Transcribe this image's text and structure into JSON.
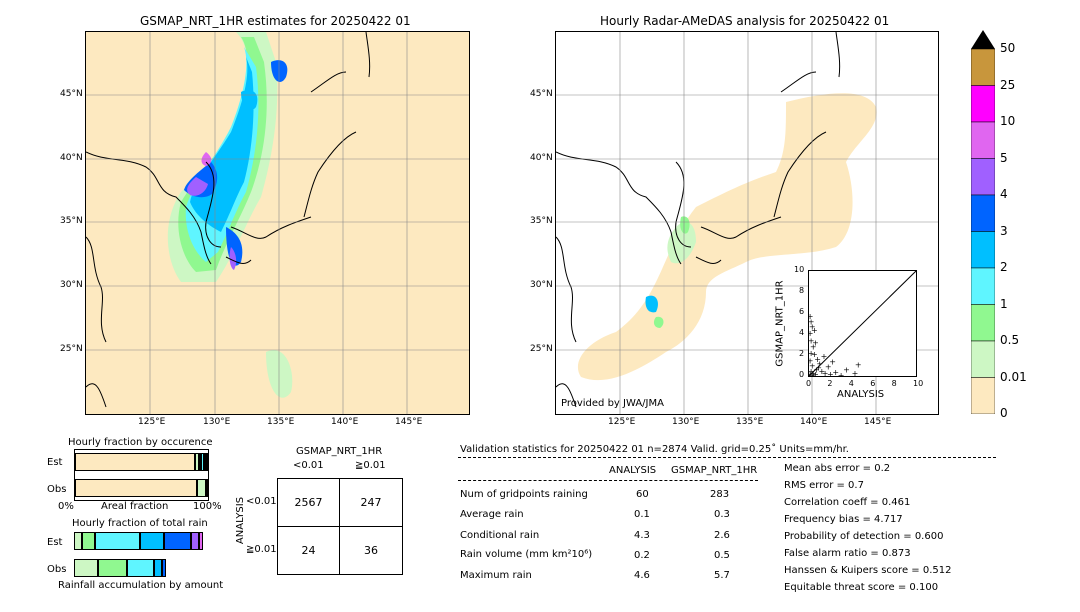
{
  "left_map": {
    "title": "GSMAP_NRT_1HR estimates for 20250422 01",
    "lon_ticks": [
      "125°E",
      "130°E",
      "135°E",
      "140°E",
      "145°E"
    ],
    "lat_ticks": [
      "45°N",
      "40°N",
      "35°N",
      "30°N",
      "25°N"
    ]
  },
  "right_map": {
    "title": "Hourly Radar-AMeDAS analysis for 20250422 01",
    "lon_ticks": [
      "125°E",
      "130°E",
      "135°E",
      "140°E",
      "145°E"
    ],
    "lat_ticks": [
      "45°N",
      "40°N",
      "35°N",
      "30°N",
      "25°N"
    ],
    "credit": "Provided by JWA/JMA"
  },
  "colorbar": {
    "labels": [
      "50",
      "25",
      "10",
      "5",
      "4",
      "3",
      "2",
      "1",
      "0.5",
      "0.01",
      "0"
    ],
    "colors": [
      "#c8963c",
      "#ff00ff",
      "#e066f0",
      "#a060ff",
      "#0064ff",
      "#00bfff",
      "#5ff5ff",
      "#90f890",
      "#cdf7c4",
      "#fde9c0"
    ]
  },
  "chart_data": [
    {
      "type": "scatter",
      "title": "",
      "xlabel": "ANALYSIS",
      "ylabel": "GSMAP_NRT_1HR",
      "xlim": [
        0,
        10
      ],
      "ylim": [
        0,
        10
      ],
      "x_ticks": [
        "0",
        "2",
        "4",
        "6",
        "8",
        "10"
      ],
      "y_ticks": [
        "0",
        "2",
        "4",
        "6",
        "8",
        "10"
      ],
      "diagonal": true,
      "points": [
        [
          0.1,
          0.2
        ],
        [
          0.2,
          0.5
        ],
        [
          0.3,
          1.0
        ],
        [
          0.1,
          1.5
        ],
        [
          0.2,
          2.2
        ],
        [
          0.4,
          2.8
        ],
        [
          0.2,
          3.4
        ],
        [
          0.1,
          4.1
        ],
        [
          0.3,
          4.7
        ],
        [
          0.2,
          5.2
        ],
        [
          0.1,
          5.7
        ],
        [
          0.5,
          4.4
        ],
        [
          0.6,
          3.2
        ],
        [
          0.5,
          2.1
        ],
        [
          0.8,
          1.6
        ],
        [
          0.9,
          0.8
        ],
        [
          1.2,
          0.5
        ],
        [
          1.5,
          0.3
        ],
        [
          2.0,
          0.2
        ],
        [
          2.5,
          0.4
        ],
        [
          3.0,
          0.1
        ],
        [
          4.3,
          0.3
        ],
        [
          4.6,
          1.1
        ],
        [
          3.5,
          0.6
        ],
        [
          1.0,
          1.2
        ],
        [
          0.7,
          0.6
        ],
        [
          0.4,
          0.3
        ],
        [
          1.8,
          0.9
        ],
        [
          2.2,
          1.4
        ],
        [
          0.3,
          0.1
        ],
        [
          0.6,
          0.2
        ],
        [
          1.4,
          1.9
        ]
      ]
    },
    {
      "type": "bar",
      "title": "Hourly fraction by occurence",
      "categories": [
        "Est",
        "Obs"
      ],
      "xlim": [
        0,
        1
      ],
      "x_ticks": [
        "0%",
        "100%"
      ],
      "xlabel": "Areal fraction",
      "series": [
        {
          "name": "Est",
          "segments": [
            {
              "color": "#fde9c0",
              "value": 0.9
            },
            {
              "color": "#cdf7c4",
              "value": 0.03
            },
            {
              "color": "#90f890",
              "value": 0.02
            },
            {
              "color": "#5ff5ff",
              "value": 0.02
            },
            {
              "color": "#00bfff",
              "value": 0.015
            },
            {
              "color": "#0064ff",
              "value": 0.015
            }
          ]
        },
        {
          "name": "Obs",
          "segments": [
            {
              "color": "#fde9c0",
              "value": 0.92
            },
            {
              "color": "#cdf7c4",
              "value": 0.07
            },
            {
              "color": "#90f890",
              "value": 0.01
            }
          ]
        }
      ]
    },
    {
      "type": "bar",
      "title": "Hourly fraction of total rain",
      "categories": [
        "Est",
        "Obs"
      ],
      "xlabel": "Rainfall accumulation by amount",
      "xlim": [
        0,
        1
      ],
      "series": [
        {
          "name": "Est",
          "segments": [
            {
              "color": "#cdf7c4",
              "value": 0.06
            },
            {
              "color": "#90f890",
              "value": 0.1
            },
            {
              "color": "#5ff5ff",
              "value": 0.34
            },
            {
              "color": "#00bfff",
              "value": 0.18
            },
            {
              "color": "#0064ff",
              "value": 0.2
            },
            {
              "color": "#a060ff",
              "value": 0.06
            },
            {
              "color": "#e066f0",
              "value": 0.03
            }
          ]
        },
        {
          "name": "Obs",
          "segments": [
            {
              "color": "#cdf7c4",
              "value": 0.18
            },
            {
              "color": "#90f890",
              "value": 0.22
            },
            {
              "color": "#5ff5ff",
              "value": 0.2
            },
            {
              "color": "#00bfff",
              "value": 0.06
            },
            {
              "color": "#0064ff",
              "value": 0.03
            }
          ]
        }
      ]
    }
  ],
  "contingency": {
    "header": "GSMAP_NRT_1HR",
    "col_labels": [
      "<0.01",
      "≧0.01"
    ],
    "row_labels": [
      "<0.01",
      "≧0.01"
    ],
    "side_label": "ANALYSIS",
    "cells": [
      [
        "2567",
        "247"
      ],
      [
        "24",
        "36"
      ]
    ]
  },
  "validation": {
    "header": "Validation statistics for 20250422 01  n=2874 Valid. grid=0.25˚ Units=mm/hr.",
    "col_analysis": "ANALYSIS",
    "col_gsmap": "GSMAP_NRT_1HR",
    "rows": [
      {
        "label": "Num of gridpoints raining",
        "analysis": "60",
        "gsmap": "283"
      },
      {
        "label": "Average rain",
        "analysis": "0.1",
        "gsmap": "0.3"
      },
      {
        "label": "Conditional rain",
        "analysis": "4.3",
        "gsmap": "2.6"
      },
      {
        "label": "Rain volume (mm km²10⁶)",
        "analysis": "0.2",
        "gsmap": "0.5"
      },
      {
        "label": "Maximum rain",
        "analysis": "4.6",
        "gsmap": "5.7"
      }
    ],
    "scores": [
      "Mean abs error =    0.2",
      "RMS error =    0.7",
      "Correlation coeff =  0.461",
      "Frequency bias =  4.717",
      "Probability of detection =  0.600",
      "False alarm ratio =  0.873",
      "Hanssen & Kuipers score =  0.512",
      "Equitable threat score =  0.100"
    ]
  }
}
